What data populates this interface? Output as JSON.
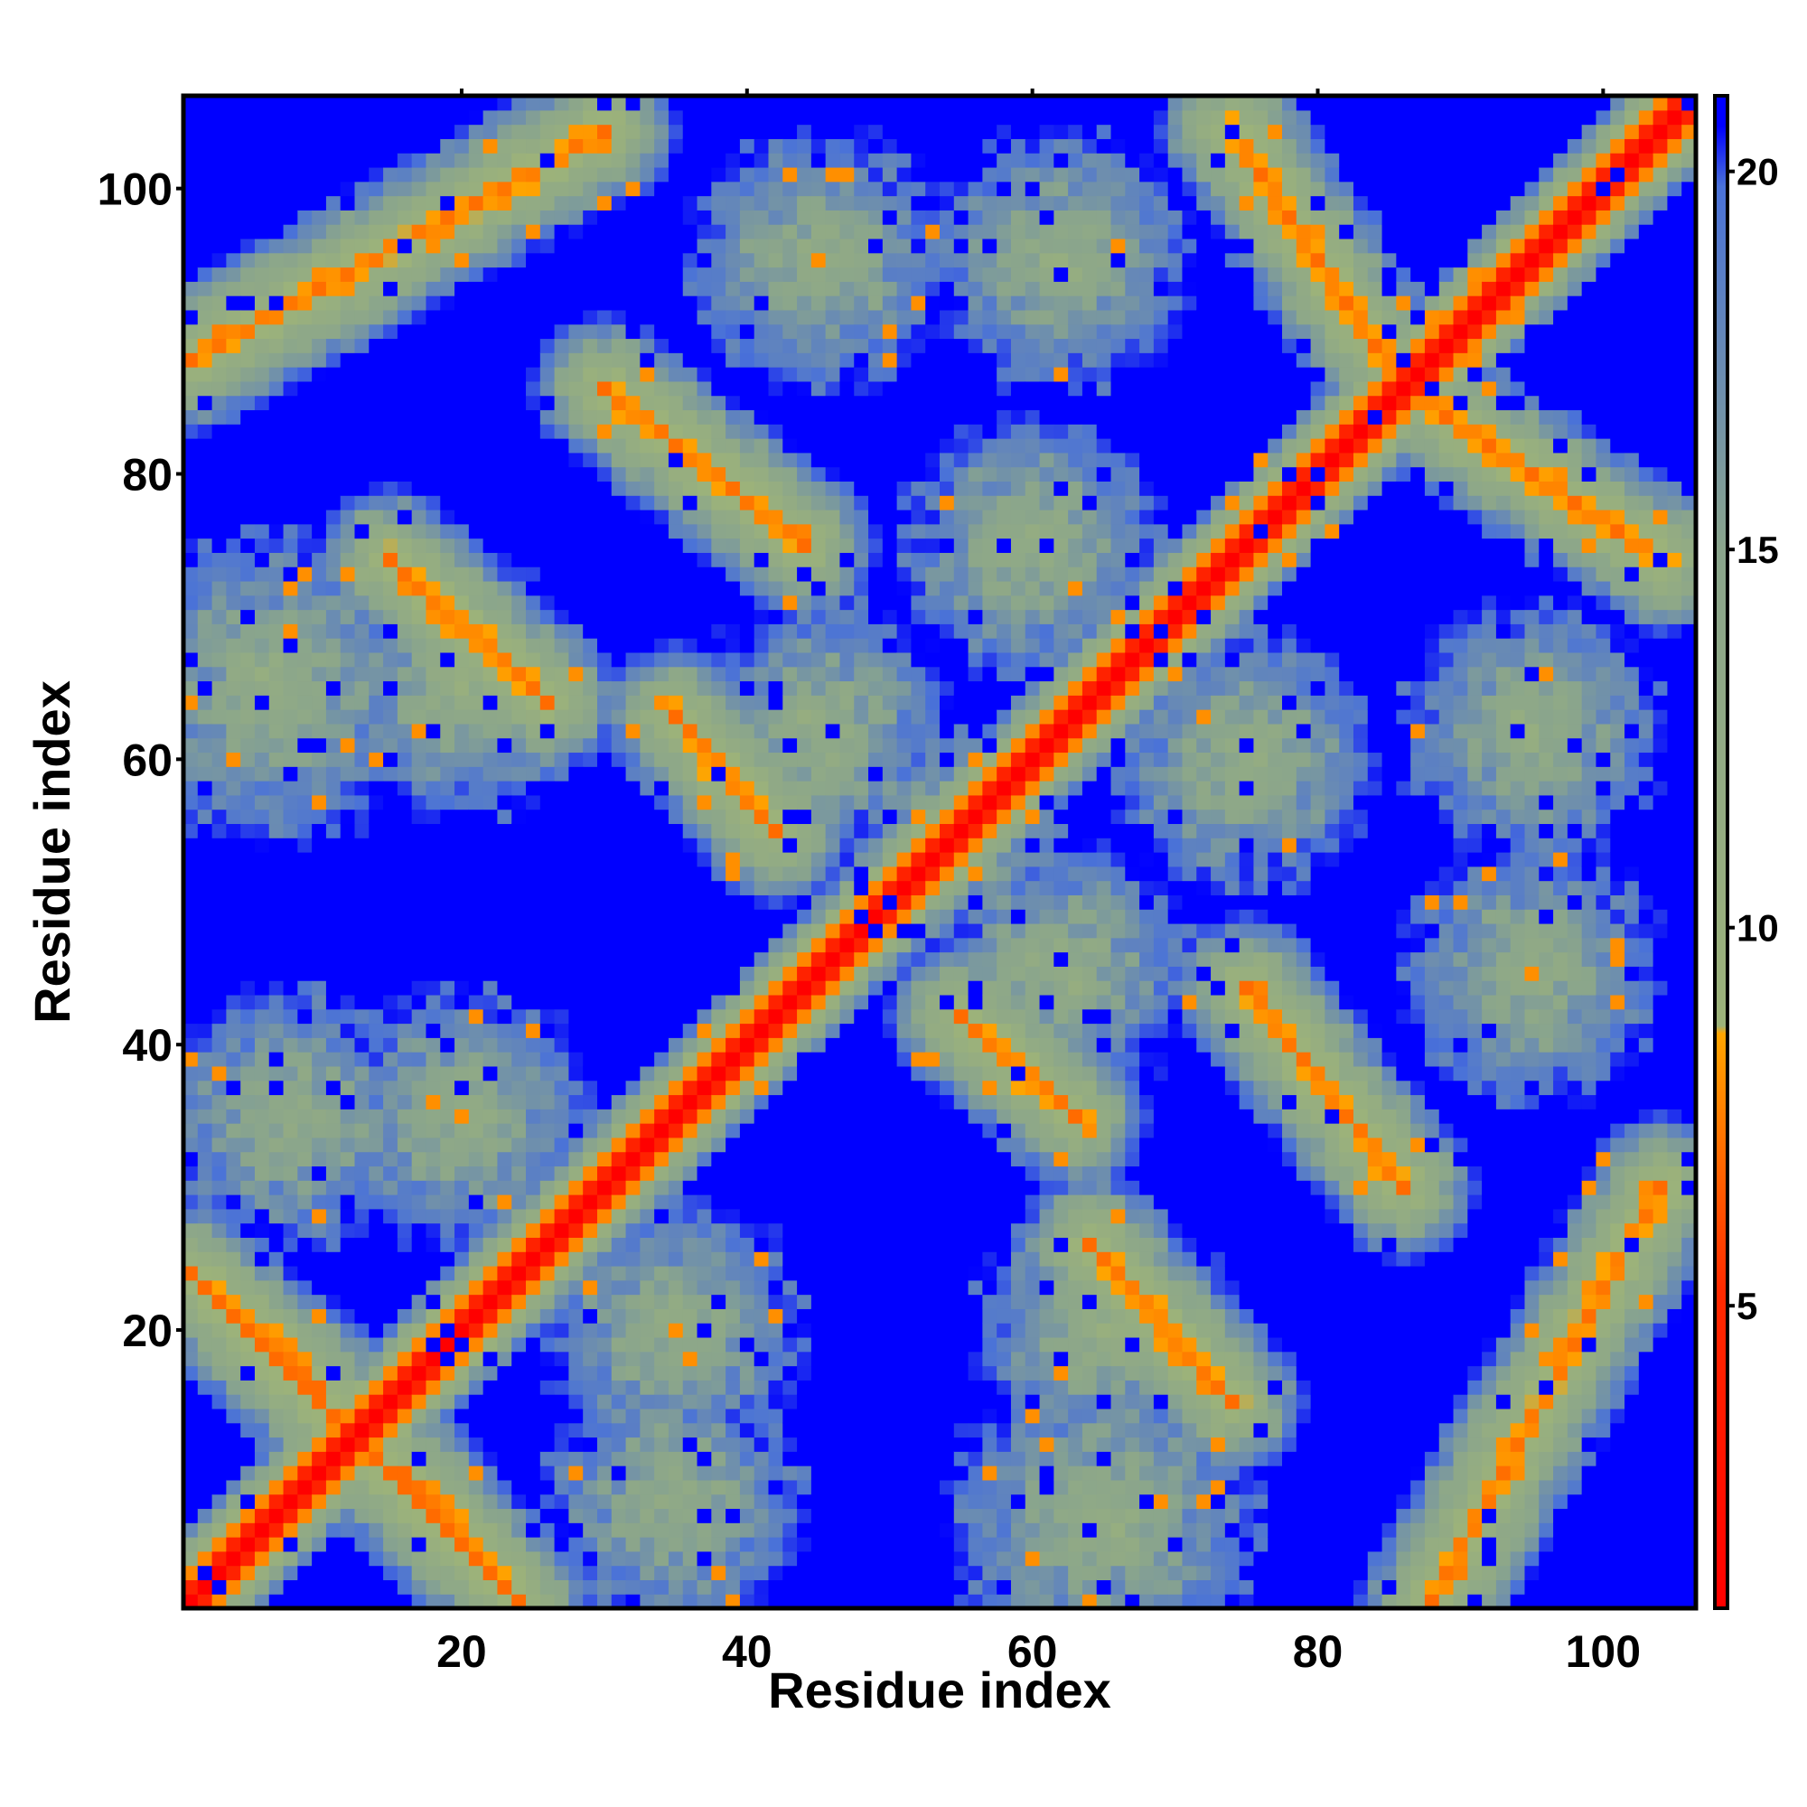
{
  "chart_data": {
    "type": "heatmap",
    "title": "",
    "xlabel": "Residue index",
    "ylabel": "Residue index",
    "xlim": [
      1,
      106
    ],
    "ylim": [
      1,
      106
    ],
    "n_residues": 106,
    "x_ticks": [
      20,
      40,
      60,
      80,
      100
    ],
    "y_ticks": [
      20,
      40,
      60,
      80,
      100
    ],
    "grid": false,
    "colorbar": {
      "placement": "right",
      "ticks": [
        5,
        10,
        15,
        20
      ],
      "range": [
        1,
        21
      ],
      "stops": [
        {
          "value": 1.0,
          "color": "#ff0000"
        },
        {
          "value": 5.2,
          "color": "#ff2a00"
        },
        {
          "value": 8.6,
          "color": "#ffa500"
        },
        {
          "value": 8.7,
          "color": "#9cb27a"
        },
        {
          "value": 15.0,
          "color": "#8aa58c"
        },
        {
          "value": 19.8,
          "color": "#4a72d8"
        },
        {
          "value": 20.6,
          "color": "#0000ff"
        }
      ]
    },
    "saturated_color": "#0000ff",
    "description_values": {
      "unit": "distance value (colorbar units)",
      "diagonal_value": 1,
      "far_value": 21
    },
    "ridges": [
      {
        "from": [
          1,
          24
        ],
        "to": [
          24,
          1
        ],
        "min": 7
      },
      {
        "from": [
          1,
          88
        ],
        "to": [
          30,
          104
        ],
        "min": 7
      },
      {
        "from": [
          30,
          86
        ],
        "to": [
          44,
          75
        ],
        "min": 7
      },
      {
        "from": [
          15,
          74
        ],
        "to": [
          26,
          64
        ],
        "min": 7
      },
      {
        "from": [
          35,
          63
        ],
        "to": [
          42,
          55
        ],
        "min": 7
      },
      {
        "from": [
          56,
          42
        ],
        "to": [
          64,
          34
        ],
        "min": 7
      },
      {
        "from": [
          65,
          24
        ],
        "to": [
          74,
          17
        ],
        "min": 7
      },
      {
        "from": [
          76,
          44
        ],
        "to": [
          88,
          30
        ],
        "min": 7
      },
      {
        "from": [
          74,
          104
        ],
        "to": [
          86,
          86
        ],
        "min": 7
      },
      {
        "from": [
          86,
          86
        ],
        "to": [
          104,
          73
        ],
        "min": 7
      },
      {
        "from": [
          82,
          5
        ],
        "to": [
          88,
          1
        ],
        "min": 7
      },
      {
        "from": [
          90,
          1
        ],
        "to": [
          96,
          9
        ],
        "min": 7
      },
      {
        "from": [
          96,
          9
        ],
        "to": [
          104,
          16
        ],
        "min": 7
      },
      {
        "from": [
          1,
          24
        ],
        "to": [
          10,
          16
        ],
        "min": 7
      }
    ],
    "blobs": [
      {
        "center": [
          7,
          65
        ],
        "radius": 12
      },
      {
        "center": [
          20,
          65
        ],
        "radius": 10
      },
      {
        "center": [
          45,
          62
        ],
        "radius": 10
      },
      {
        "center": [
          55,
          55
        ],
        "radius": 8
      },
      {
        "center": [
          65,
          48
        ],
        "radius": 8
      },
      {
        "center": [
          80,
          56
        ],
        "radius": 10
      },
      {
        "center": [
          95,
          56
        ],
        "radius": 10
      },
      {
        "center": [
          45,
          95
        ],
        "radius": 10
      },
      {
        "center": [
          62,
          95
        ],
        "radius": 10
      },
      {
        "center": [
          60,
          75
        ],
        "radius": 10
      },
      {
        "center": [
          95,
          42
        ],
        "radius": 10
      },
      {
        "center": [
          85,
          23
        ],
        "radius": 10
      },
      {
        "center": [
          40,
          23
        ],
        "radius": 10
      },
      {
        "center": [
          60,
          17
        ],
        "radius": 10
      },
      {
        "center": [
          45,
          10
        ],
        "radius": 10
      },
      {
        "center": [
          20,
          35
        ],
        "radius": 10
      },
      {
        "center": [
          8,
          35
        ],
        "radius": 10
      },
      {
        "center": [
          70,
          5
        ],
        "radius": 8
      }
    ]
  }
}
